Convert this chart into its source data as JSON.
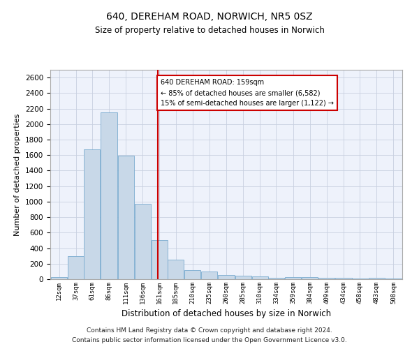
{
  "title1": "640, DEREHAM ROAD, NORWICH, NR5 0SZ",
  "title2": "Size of property relative to detached houses in Norwich",
  "xlabel": "Distribution of detached houses by size in Norwich",
  "ylabel": "Number of detached properties",
  "footnote1": "Contains HM Land Registry data © Crown copyright and database right 2024.",
  "footnote2": "Contains public sector information licensed under the Open Government Licence v3.0.",
  "annotation_line1": "640 DEREHAM ROAD: 159sqm",
  "annotation_line2": "← 85% of detached houses are smaller (6,582)",
  "annotation_line3": "15% of semi-detached houses are larger (1,122) →",
  "bar_color": "#c8d8e8",
  "bar_edge_color": "#7aabcf",
  "vline_x": 159,
  "vline_color": "#cc0000",
  "categories": [
    "12sqm",
    "37sqm",
    "61sqm",
    "86sqm",
    "111sqm",
    "136sqm",
    "161sqm",
    "185sqm",
    "210sqm",
    "235sqm",
    "260sqm",
    "285sqm",
    "310sqm",
    "334sqm",
    "359sqm",
    "384sqm",
    "409sqm",
    "434sqm",
    "458sqm",
    "483sqm",
    "508sqm"
  ],
  "bin_centers": [
    12,
    37,
    61,
    86,
    111,
    136,
    161,
    185,
    210,
    235,
    260,
    285,
    310,
    334,
    359,
    384,
    409,
    434,
    458,
    483,
    508
  ],
  "bin_width": 25,
  "values": [
    25,
    300,
    1670,
    2150,
    1595,
    970,
    505,
    250,
    120,
    100,
    50,
    45,
    40,
    20,
    25,
    25,
    20,
    20,
    5,
    20,
    5
  ],
  "ylim": [
    0,
    2700
  ],
  "yticks": [
    0,
    200,
    400,
    600,
    800,
    1000,
    1200,
    1400,
    1600,
    1800,
    2000,
    2200,
    2400,
    2600
  ],
  "xlim_left": -1,
  "xlim_right": 521,
  "bg_color": "#eef2fb",
  "grid_color": "#c8d0e0"
}
